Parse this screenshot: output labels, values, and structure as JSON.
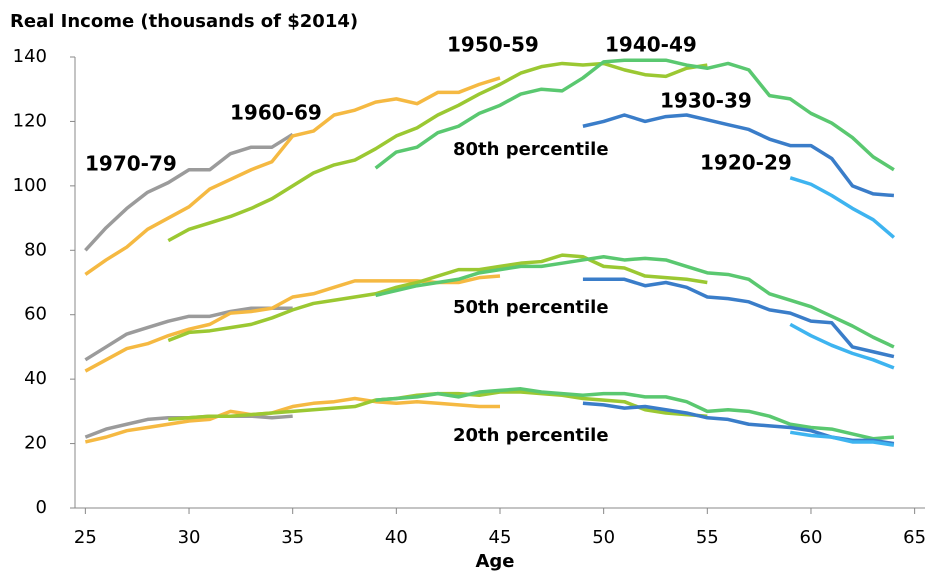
{
  "chart_data": {
    "type": "line",
    "title": "Real Income (thousands of $2014)",
    "x_label": "Age",
    "xlim": [
      24.5,
      65.5
    ],
    "xticks": [
      25,
      30,
      35,
      40,
      45,
      50,
      55,
      60,
      65
    ],
    "ylim": [
      0,
      140
    ],
    "yticks": [
      0,
      20,
      40,
      60,
      80,
      100,
      120,
      140
    ],
    "grid": false,
    "percentile_labels": [
      "80th percentile",
      "50th percentile",
      "20th percentile"
    ],
    "series": [
      {
        "name": "1970-79",
        "color": "#9b9b9b",
        "x": [
          25,
          26,
          27,
          28,
          29,
          30,
          31,
          32,
          33,
          34,
          35
        ],
        "lines": [
          [
            80,
            87,
            93,
            98,
            101,
            105,
            105,
            110,
            112,
            112,
            116
          ],
          [
            46,
            50,
            54,
            56,
            58,
            59.5,
            59.5,
            61,
            62,
            62,
            62
          ],
          [
            22,
            24.5,
            26,
            27.5,
            28,
            28,
            28.5,
            28.5,
            28.5,
            28,
            28.5
          ]
        ]
      },
      {
        "name": "1960-69",
        "color": "#f5b942",
        "x": [
          25,
          26,
          27,
          28,
          29,
          30,
          31,
          32,
          33,
          34,
          35,
          36,
          37,
          38,
          39,
          40,
          41,
          42,
          43,
          44,
          45
        ],
        "lines": [
          [
            72.5,
            77,
            81,
            86.5,
            90,
            93.5,
            99,
            102,
            105,
            107.5,
            115.5,
            117,
            122,
            123.5,
            126,
            127,
            125.5,
            129,
            129,
            131.5,
            133.5
          ],
          [
            42.5,
            46,
            49.5,
            51,
            53.5,
            55.5,
            57,
            60.5,
            61,
            62,
            65.5,
            66.5,
            68.5,
            70.5,
            70.5,
            70.5,
            70.5,
            70,
            70,
            71.5,
            72
          ],
          [
            20.5,
            22,
            24,
            25,
            26,
            27,
            27.5,
            30,
            29,
            29.5,
            31.5,
            32.5,
            33,
            34,
            33,
            32.5,
            33,
            32.5,
            32,
            31.5,
            31.5
          ]
        ]
      },
      {
        "name": "1950-59",
        "color": "#9bc832",
        "x": [
          29,
          30,
          31,
          32,
          33,
          34,
          35,
          36,
          37,
          38,
          39,
          40,
          41,
          42,
          43,
          44,
          45,
          46,
          47,
          48,
          49,
          50,
          51,
          52,
          53,
          54,
          55
        ],
        "lines": [
          [
            83,
            86.5,
            88.5,
            90.5,
            93,
            96,
            100,
            104,
            106.5,
            108,
            111.5,
            115.5,
            118,
            122,
            125,
            128.5,
            131.5,
            135,
            137,
            138,
            137.5,
            138,
            136,
            134.5,
            134,
            136.5,
            137.5
          ],
          [
            52,
            54.5,
            55,
            56,
            57,
            59,
            61.5,
            63.5,
            64.5,
            65.5,
            66.5,
            68.5,
            70,
            72,
            74,
            74,
            75,
            76,
            76.5,
            78.5,
            78,
            75,
            74.5,
            72,
            71.5,
            71,
            70
          ],
          [
            27.5,
            28,
            28.5,
            28.5,
            29,
            29.5,
            30,
            30.5,
            31,
            31.5,
            33.5,
            34,
            35,
            35.5,
            35.5,
            35,
            36,
            36,
            35.5,
            35,
            34,
            33.5,
            33,
            30.5,
            29.5,
            29,
            28.5
          ]
        ]
      },
      {
        "name": "1940-49",
        "color": "#5ac870",
        "x": [
          39,
          40,
          41,
          42,
          43,
          44,
          45,
          46,
          47,
          48,
          49,
          50,
          51,
          52,
          53,
          54,
          55,
          56,
          57,
          58,
          59,
          60,
          61,
          62,
          63,
          64
        ],
        "lines": [
          [
            105.5,
            110.5,
            112,
            116.5,
            118.5,
            122.5,
            125,
            128.5,
            130,
            129.5,
            133.5,
            138.5,
            139,
            139,
            139,
            137.5,
            136.5,
            138,
            136,
            128,
            127,
            122.5,
            119.5,
            115,
            109,
            105
          ],
          [
            66,
            67.5,
            69,
            70,
            71,
            73,
            74,
            75,
            75,
            76,
            77,
            78,
            77,
            77.5,
            77,
            75,
            73,
            72.5,
            71,
            66.5,
            64.5,
            62.5,
            59.5,
            56.5,
            53,
            50
          ],
          [
            33.5,
            34,
            34.5,
            35.5,
            34.5,
            36,
            36.5,
            37,
            36,
            35.5,
            35,
            35.5,
            35.5,
            34.5,
            34.5,
            33,
            30,
            30.5,
            30,
            28.5,
            26,
            25,
            24.5,
            23,
            21.5,
            22
          ]
        ]
      },
      {
        "name": "1930-39",
        "color": "#3a7dc9",
        "x": [
          49,
          50,
          51,
          52,
          53,
          54,
          55,
          56,
          57,
          58,
          59,
          60,
          61,
          62,
          63,
          64
        ],
        "lines": [
          [
            118.5,
            120,
            122,
            120,
            121.5,
            122,
            120.5,
            119,
            117.5,
            114.5,
            112.5,
            112.5,
            108.5,
            100,
            97.5,
            97
          ],
          [
            71,
            71,
            71,
            69,
            70,
            68.5,
            65.5,
            65,
            64,
            61.5,
            60.5,
            58,
            57.5,
            50,
            48.5,
            47
          ],
          [
            32.5,
            32,
            31,
            31.5,
            30.5,
            29.5,
            28,
            27.5,
            26,
            25.5,
            25,
            24,
            22,
            21,
            21,
            20
          ]
        ]
      },
      {
        "name": "1920-29",
        "color": "#3eb4f0",
        "x": [
          59,
          60,
          61,
          62,
          63,
          64
        ],
        "lines": [
          [
            102.5,
            100.5,
            97,
            93,
            89.5,
            84
          ],
          [
            57,
            53.5,
            50.5,
            48,
            46,
            43.5
          ],
          [
            23.5,
            22.5,
            22,
            20.5,
            20.5,
            19.5
          ]
        ]
      }
    ]
  }
}
